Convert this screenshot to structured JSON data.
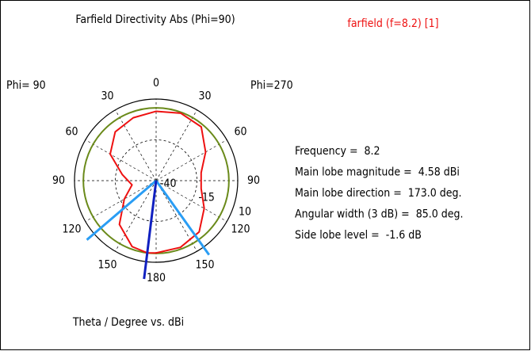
{
  "chart_data": {
    "type": "polar",
    "title": "Farfield Directivity Abs (Phi=90)",
    "legend": "farfield (f=8.2) [1]",
    "left_label": "Phi= 90",
    "right_label": "Phi=270",
    "axis_label": "Theta / Degree vs. dBi",
    "angle_ticks": [
      0,
      30,
      60,
      90,
      120,
      150,
      180
    ],
    "rlim": [
      -40,
      10
    ],
    "rticks": [
      -40,
      -15,
      10
    ],
    "series": [
      {
        "name": "farfield (f=8.2) [1]",
        "color": "#ee1111",
        "theta": [
          0,
          20,
          40,
          60,
          80,
          100,
          120,
          140,
          160,
          173,
          180,
          200,
          220,
          240,
          260,
          280,
          300,
          320,
          340
        ],
        "values": [
          2.5,
          1,
          -1,
          -7.5,
          -19,
          -25,
          -17.5,
          -5,
          3,
          4.58,
          4.3,
          3.5,
          1,
          -6,
          -12,
          -12,
          -5,
          3,
          4
        ]
      }
    ],
    "info": [
      {
        "label": "Frequency =",
        "value": 8.2
      },
      {
        "label": "Main lobe magnitude =",
        "value": 4.58,
        "value_label": "4.58 dBi"
      },
      {
        "label": "Main lobe direction =",
        "value": 173,
        "value_label": "173.0 deg."
      },
      {
        "label": "Angular width (3 dB) =",
        "value": 85,
        "value_label": "85.0 deg."
      },
      {
        "label": "Side lobe level =",
        "value": -1.6,
        "value_label": "-1.6 dB"
      }
    ]
  }
}
